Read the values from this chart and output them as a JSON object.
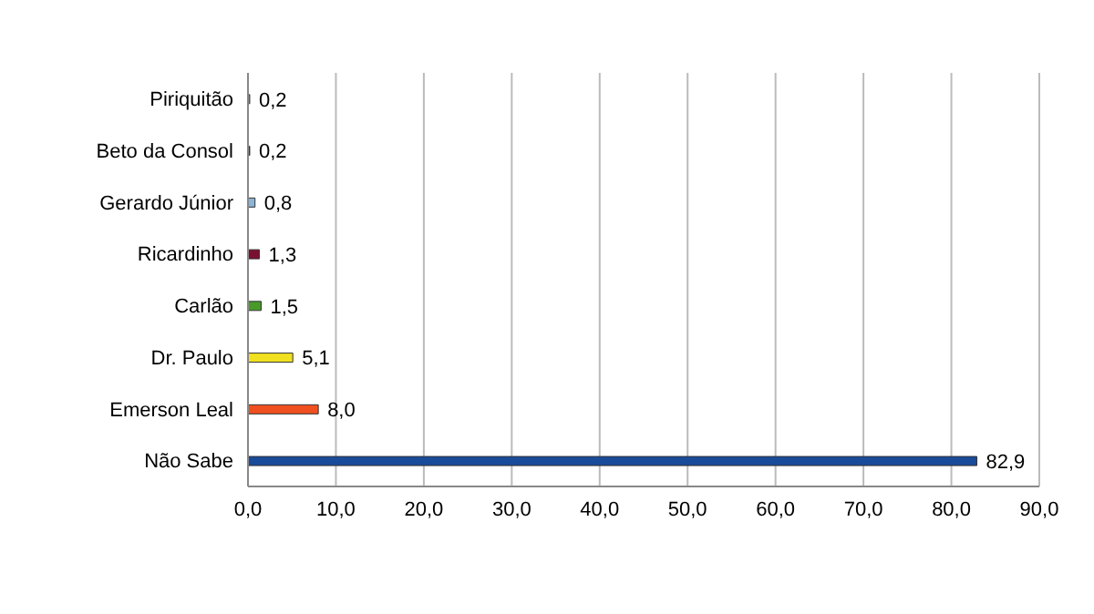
{
  "chart_data": {
    "type": "bar",
    "orientation": "horizontal",
    "categories": [
      "Piriquitão",
      "Beto da Consol",
      "Gerardo Júnior",
      "Ricardinho",
      "Carlão",
      "Dr. Paulo",
      "Emerson Leal",
      "Não Sabe"
    ],
    "values": [
      0.2,
      0.2,
      0.8,
      1.3,
      1.5,
      5.1,
      8.0,
      82.9
    ],
    "colors": [
      "#8a9a1a",
      "#2a2a1a",
      "#8ab4d8",
      "#7a1030",
      "#4a9a2a",
      "#f0e020",
      "#f05020",
      "#1a4a9a"
    ],
    "value_labels": [
      "0,2",
      "0,2",
      "0,8",
      "1,3",
      "1,5",
      "5,1",
      "8,0",
      "82,9"
    ],
    "xlim": [
      0,
      90
    ],
    "xticks": [
      {
        "value": 0,
        "label": "0,0"
      },
      {
        "value": 10,
        "label": "10,0"
      },
      {
        "value": 20,
        "label": "20,0"
      },
      {
        "value": 30,
        "label": "30,0"
      },
      {
        "value": 40,
        "label": "40,0"
      },
      {
        "value": 50,
        "label": "50,0"
      },
      {
        "value": 60,
        "label": "60,0"
      },
      {
        "value": 70,
        "label": "70,0"
      },
      {
        "value": 80,
        "label": "80,0"
      },
      {
        "value": 90,
        "label": "90,0"
      }
    ],
    "grid": "x"
  }
}
